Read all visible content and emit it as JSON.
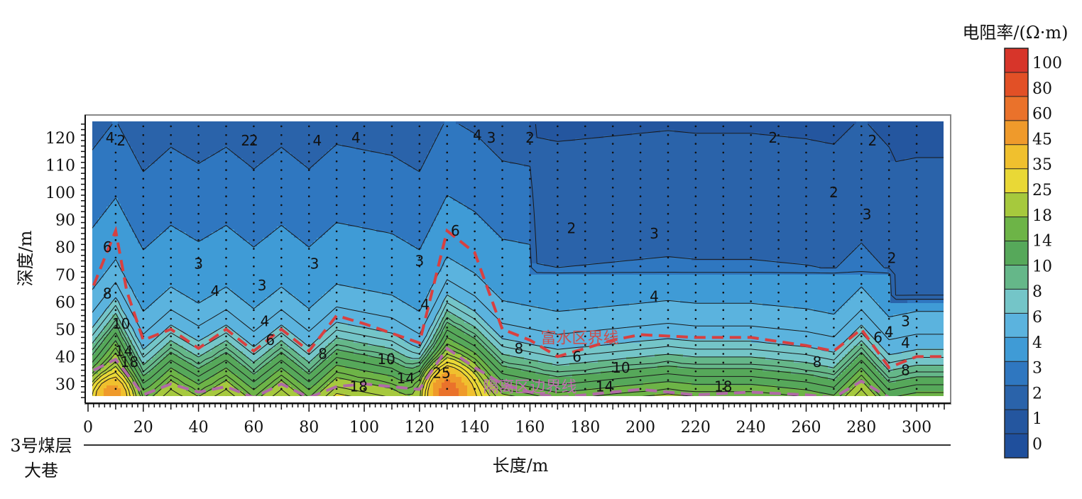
{
  "chart_data": {
    "type": "heatmap",
    "xlabel": "长度/m",
    "ylabel": "深度/m",
    "xlim": [
      0,
      310
    ],
    "ylim": [
      24,
      126
    ],
    "x_ticks": [
      0,
      20,
      40,
      60,
      80,
      100,
      120,
      140,
      160,
      180,
      200,
      220,
      240,
      260,
      280,
      300
    ],
    "y_ticks": [
      30,
      40,
      50,
      60,
      70,
      80,
      90,
      100,
      110,
      120
    ],
    "colorbar": {
      "title": "电阻率/(Ω·m)",
      "levels": [
        0,
        1,
        2,
        3,
        4,
        6,
        8,
        10,
        14,
        18,
        25,
        35,
        45,
        60,
        80,
        100
      ],
      "labels": [
        "100",
        "80",
        "60",
        "45",
        "35",
        "25",
        "18",
        "14",
        "10",
        "8",
        "6",
        "4",
        "3",
        "2",
        "1",
        "0"
      ],
      "colors": [
        "#1f4f9c",
        "#24569f",
        "#2a63aa",
        "#2f77c0",
        "#3f9bd6",
        "#5bb3de",
        "#74c5c8",
        "#65b789",
        "#56a85a",
        "#6db447",
        "#a6c93d",
        "#e9d836",
        "#f0c02e",
        "#ef9a2b",
        "#ea722b",
        "#e25026",
        "#d7352a"
      ]
    },
    "x": [
      0,
      10,
      20,
      30,
      40,
      50,
      60,
      70,
      80,
      90,
      100,
      110,
      120,
      130,
      140,
      150,
      160,
      170,
      180,
      190,
      200,
      210,
      220,
      230,
      240,
      250,
      260,
      270,
      280,
      290,
      300,
      310
    ],
    "y": [
      25,
      30,
      35,
      40,
      45,
      50,
      55,
      60,
      65,
      70,
      75,
      80,
      85,
      90,
      95,
      100,
      105,
      110,
      115,
      120,
      125
    ],
    "boundaries": [
      {
        "name": "富水区界线",
        "color": "#d84040",
        "points": [
          [
            2,
            66
          ],
          [
            10,
            86
          ],
          [
            14,
            64
          ],
          [
            20,
            46
          ],
          [
            30,
            50
          ],
          [
            40,
            43
          ],
          [
            50,
            50
          ],
          [
            60,
            42
          ],
          [
            70,
            50
          ],
          [
            80,
            42
          ],
          [
            90,
            55
          ],
          [
            100,
            52
          ],
          [
            120,
            45
          ],
          [
            130,
            86
          ],
          [
            140,
            78
          ],
          [
            150,
            50
          ],
          [
            160,
            46
          ],
          [
            170,
            40
          ],
          [
            180,
            43
          ],
          [
            190,
            46
          ],
          [
            200,
            48
          ],
          [
            220,
            47
          ],
          [
            240,
            47
          ],
          [
            260,
            44
          ],
          [
            270,
            42
          ],
          [
            280,
            50
          ],
          [
            290,
            36
          ],
          [
            300,
            40
          ],
          [
            310,
            40
          ]
        ]
      },
      {
        "name": "隔离区边界线",
        "color": "#b06aa6",
        "points": [
          [
            2,
            35
          ],
          [
            10,
            39
          ],
          [
            20,
            26
          ],
          [
            30,
            30
          ],
          [
            40,
            27
          ],
          [
            50,
            29
          ],
          [
            60,
            25
          ],
          [
            70,
            30
          ],
          [
            80,
            25
          ],
          [
            90,
            29
          ],
          [
            100,
            30
          ],
          [
            120,
            28
          ],
          [
            130,
            43
          ],
          [
            140,
            36
          ],
          [
            150,
            30
          ],
          [
            160,
            27
          ],
          [
            170,
            25
          ],
          [
            180,
            26
          ],
          [
            190,
            27
          ],
          [
            200,
            28
          ],
          [
            220,
            26
          ],
          [
            240,
            27
          ],
          [
            260,
            26
          ],
          [
            270,
            25
          ],
          [
            280,
            31
          ],
          [
            290,
            25
          ]
        ]
      }
    ],
    "contour_labels": [
      {
        "text": "2",
        "x": 12,
        "y": 119
      },
      {
        "text": "4",
        "x": 8,
        "y": 120
      },
      {
        "text": "2",
        "x": 57,
        "y": 119
      },
      {
        "text": "2",
        "x": 60,
        "y": 119
      },
      {
        "text": "4",
        "x": 83,
        "y": 119
      },
      {
        "text": "4",
        "x": 97,
        "y": 120
      },
      {
        "text": "4",
        "x": 141,
        "y": 121
      },
      {
        "text": "3",
        "x": 146,
        "y": 120
      },
      {
        "text": "2",
        "x": 160,
        "y": 120
      },
      {
        "text": "2",
        "x": 248,
        "y": 120
      },
      {
        "text": "2",
        "x": 284,
        "y": 119
      },
      {
        "text": "2",
        "x": 270,
        "y": 100
      },
      {
        "text": "2",
        "x": 175,
        "y": 87
      },
      {
        "text": "3",
        "x": 205,
        "y": 85
      },
      {
        "text": "3",
        "x": 282,
        "y": 92
      },
      {
        "text": "2",
        "x": 291,
        "y": 76
      },
      {
        "text": "6",
        "x": 7,
        "y": 80
      },
      {
        "text": "6",
        "x": 133,
        "y": 86
      },
      {
        "text": "3",
        "x": 40,
        "y": 74
      },
      {
        "text": "3",
        "x": 82,
        "y": 74
      },
      {
        "text": "3",
        "x": 120,
        "y": 75
      },
      {
        "text": "3",
        "x": 63,
        "y": 66
      },
      {
        "text": "4",
        "x": 46,
        "y": 64
      },
      {
        "text": "4",
        "x": 64,
        "y": 53
      },
      {
        "text": "4",
        "x": 122,
        "y": 59
      },
      {
        "text": "4",
        "x": 205,
        "y": 62
      },
      {
        "text": "3",
        "x": 296,
        "y": 53
      },
      {
        "text": "4",
        "x": 290,
        "y": 49
      },
      {
        "text": "4",
        "x": 296,
        "y": 45
      },
      {
        "text": "6",
        "x": 66,
        "y": 46
      },
      {
        "text": "6",
        "x": 286,
        "y": 47
      },
      {
        "text": "6",
        "x": 177,
        "y": 40
      },
      {
        "text": "8",
        "x": 7,
        "y": 63
      },
      {
        "text": "8",
        "x": 85,
        "y": 41
      },
      {
        "text": "8",
        "x": 156,
        "y": 43
      },
      {
        "text": "8",
        "x": 264,
        "y": 38
      },
      {
        "text": "8",
        "x": 296,
        "y": 35
      },
      {
        "text": "10",
        "x": 12,
        "y": 52
      },
      {
        "text": "10",
        "x": 108,
        "y": 39
      },
      {
        "text": "10",
        "x": 193,
        "y": 36
      },
      {
        "text": "14",
        "x": 13,
        "y": 42
      },
      {
        "text": "14",
        "x": 115,
        "y": 32
      },
      {
        "text": "14",
        "x": 187,
        "y": 29
      },
      {
        "text": "18",
        "x": 15,
        "y": 38
      },
      {
        "text": "18",
        "x": 98,
        "y": 29
      },
      {
        "text": "18",
        "x": 230,
        "y": 29
      },
      {
        "text": "25",
        "x": 128,
        "y": 34
      }
    ],
    "zone_labels": [
      {
        "text": "富水区界线",
        "x": 178,
        "y": 47,
        "color": "#c85050"
      },
      {
        "text": "隔离区边界线",
        "x": 160,
        "y": 29,
        "color": "#c070b0"
      }
    ],
    "coal_seam_label": [
      "3号煤层",
      "大巷"
    ]
  }
}
